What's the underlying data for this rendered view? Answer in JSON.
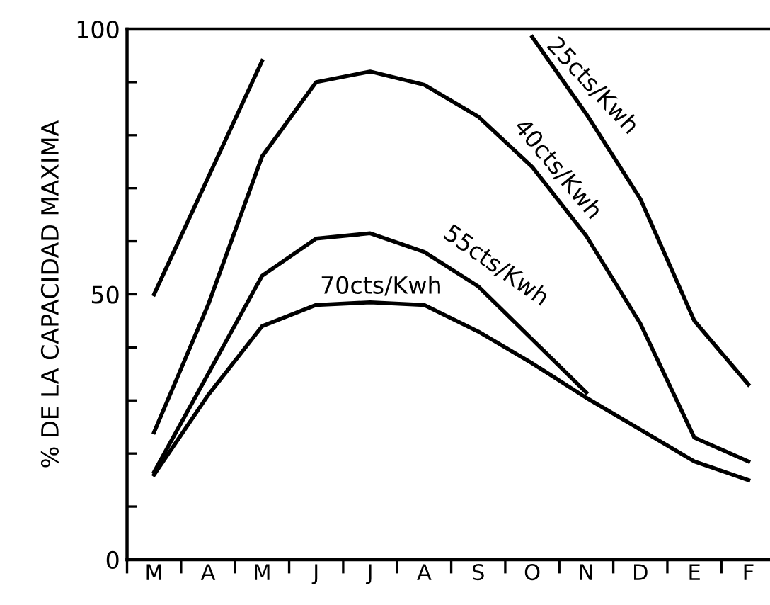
{
  "chart_data": {
    "type": "line",
    "ylabel": "% DE LA CAPACIDAD MAXIMA",
    "categories": [
      "M",
      "A",
      "M",
      "J",
      "J",
      "A",
      "S",
      "O",
      "N",
      "D",
      "E",
      "F"
    ],
    "ylim": [
      0,
      100
    ],
    "yticks": [
      0,
      {
        "value": 10,
        "label": null
      },
      {
        "value": 20,
        "label": null
      },
      {
        "value": 30,
        "label": null
      },
      {
        "value": 40,
        "label": null
      },
      50,
      {
        "value": 60,
        "label": null
      },
      {
        "value": 70,
        "label": null
      },
      {
        "value": 80,
        "label": null
      },
      {
        "value": 90,
        "label": null
      },
      100
    ],
    "grid": false,
    "legend": false,
    "marker": "none",
    "line_style": "solid",
    "series": [
      {
        "name": "25cts/Kwh",
        "color": "#000000",
        "values": [
          50,
          72,
          94,
          null,
          null,
          null,
          null,
          98.5,
          84,
          68,
          45,
          33
        ]
      },
      {
        "name": "40cts/Kwh",
        "color": "#000000",
        "values": [
          24,
          48,
          76,
          90,
          92,
          89.5,
          83.5,
          74,
          61,
          44.5,
          23,
          18.5
        ]
      },
      {
        "name": "55cts/Kwh",
        "color": "#000000",
        "values": [
          16.5,
          35,
          53.5,
          60.5,
          61.5,
          58,
          51.5,
          41.5,
          31.5,
          null,
          null,
          null
        ]
      },
      {
        "name": "70cts/Kwh",
        "color": "#000000",
        "values": [
          16,
          31,
          44,
          48,
          48.5,
          48,
          43,
          37,
          30.5,
          24.5,
          18.5,
          15
        ]
      }
    ]
  }
}
